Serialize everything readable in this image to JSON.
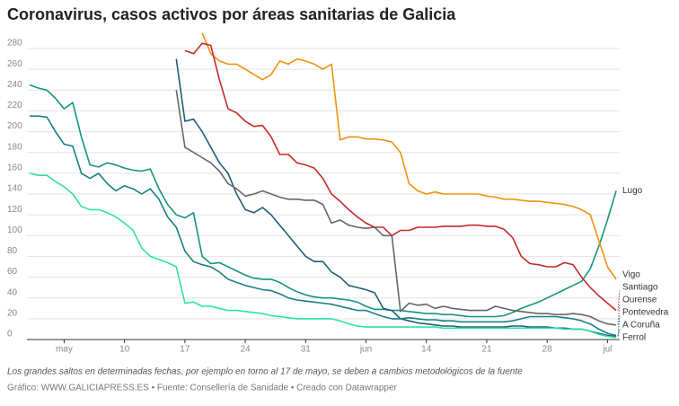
{
  "chart_data": {
    "type": "line",
    "title": "Coronavirus, casos activos por áreas sanitarias de Galicia",
    "note": "Los grandes saltos en determinadas fechas, por ejemplo en torno al 17 de mayo, se deben a cambios metodológicos de la fuente",
    "credit": "Gráfico: WWW.GALICIAPRESS.ES • Fuente: Consellería de Sanidade • Creado con Datawrapper",
    "categories": [
      null,
      null,
      null,
      null,
      "may",
      null,
      null,
      null,
      null,
      null,
      null,
      "10",
      null,
      null,
      null,
      null,
      null,
      null,
      "17",
      null,
      null,
      null,
      null,
      null,
      null,
      "24",
      null,
      null,
      null,
      null,
      null,
      null,
      "31",
      null,
      null,
      null,
      null,
      null,
      null,
      "jun",
      null,
      null,
      null,
      null,
      null,
      null,
      "14",
      null,
      null,
      null,
      null,
      null,
      null,
      "21",
      null,
      null,
      null,
      null,
      null,
      null,
      "28",
      null,
      null,
      null,
      null,
      null,
      null,
      "jul",
      null
    ],
    "ylim": [
      0,
      280
    ],
    "yticks": [
      0,
      20,
      40,
      60,
      80,
      100,
      120,
      140,
      160,
      180,
      200,
      220,
      240,
      260,
      280
    ],
    "grid": true,
    "series": [
      {
        "name": "Lugo",
        "color": "#13957d",
        "values": [
          245,
          242,
          240,
          232,
          222,
          228,
          195,
          168,
          166,
          170,
          168,
          165,
          163,
          162,
          164,
          145,
          130,
          120,
          117,
          122,
          80,
          73,
          74,
          70,
          66,
          62,
          59,
          58,
          58,
          55,
          50,
          46,
          43,
          41,
          40,
          40,
          39,
          38,
          36,
          32,
          29,
          29,
          28,
          28,
          27,
          26,
          25,
          25,
          24,
          24,
          23,
          22,
          22,
          22,
          22,
          23,
          26,
          30,
          33,
          36,
          40,
          44,
          48,
          52,
          56,
          68,
          90,
          115,
          143
        ]
      },
      {
        "name": "Vigo",
        "color": "#f0920e",
        "values": [
          null,
          null,
          null,
          null,
          null,
          null,
          null,
          null,
          null,
          null,
          null,
          null,
          null,
          null,
          null,
          null,
          null,
          null,
          null,
          null,
          295,
          275,
          268,
          265,
          265,
          260,
          255,
          250,
          255,
          268,
          265,
          270,
          268,
          265,
          260,
          265,
          192,
          195,
          195,
          193,
          193,
          192,
          190,
          180,
          150,
          143,
          140,
          142,
          140,
          140,
          140,
          140,
          140,
          138,
          137,
          135,
          135,
          134,
          133,
          133,
          132,
          131,
          130,
          128,
          125,
          120,
          95,
          70,
          58
        ]
      },
      {
        "name": "A Coruña",
        "color": "#1e5d76",
        "values": [
          null,
          null,
          null,
          null,
          null,
          null,
          null,
          null,
          null,
          null,
          null,
          null,
          null,
          null,
          null,
          null,
          null,
          270,
          210,
          212,
          200,
          185,
          170,
          160,
          140,
          125,
          122,
          127,
          120,
          110,
          100,
          90,
          80,
          75,
          75,
          65,
          60,
          52,
          50,
          48,
          45,
          30,
          28,
          20,
          18,
          16,
          15,
          14,
          13,
          13,
          12,
          12,
          12,
          12,
          12,
          12,
          13,
          13,
          12,
          12,
          12,
          11,
          11,
          10,
          10,
          8,
          6,
          4,
          3
        ]
      },
      {
        "name": "Santiago",
        "color": "#c42a2a",
        "values": [
          null,
          null,
          null,
          null,
          null,
          null,
          null,
          null,
          null,
          null,
          null,
          null,
          null,
          null,
          null,
          null,
          null,
          null,
          278,
          275,
          285,
          283,
          250,
          222,
          218,
          210,
          205,
          206,
          195,
          178,
          178,
          170,
          168,
          165,
          155,
          140,
          133,
          125,
          118,
          112,
          108,
          108,
          100,
          105,
          105,
          108,
          108,
          108,
          109,
          109,
          109,
          110,
          110,
          109,
          109,
          106,
          98,
          80,
          73,
          72,
          70,
          70,
          74,
          72,
          60,
          50,
          42,
          35,
          28
        ]
      },
      {
        "name": "Ourense",
        "color": "#666666",
        "values": [
          null,
          null,
          null,
          null,
          null,
          null,
          null,
          null,
          null,
          null,
          null,
          null,
          null,
          null,
          null,
          null,
          null,
          240,
          185,
          180,
          175,
          170,
          162,
          150,
          145,
          138,
          140,
          143,
          140,
          137,
          135,
          135,
          134,
          134,
          130,
          112,
          115,
          110,
          108,
          107,
          108,
          100,
          100,
          27,
          35,
          33,
          34,
          30,
          32,
          30,
          29,
          28,
          28,
          28,
          32,
          30,
          28,
          27,
          26,
          25,
          25,
          24,
          24,
          25,
          24,
          22,
          18,
          15,
          14
        ]
      },
      {
        "name": "Pontevedra",
        "color": "#177f86",
        "values": [
          215,
          215,
          214,
          200,
          188,
          186,
          160,
          155,
          160,
          150,
          143,
          148,
          145,
          140,
          145,
          135,
          118,
          108,
          85,
          75,
          72,
          70,
          65,
          58,
          55,
          52,
          50,
          48,
          47,
          44,
          40,
          38,
          37,
          36,
          35,
          34,
          32,
          30,
          28,
          28,
          25,
          22,
          20,
          20,
          21,
          20,
          19,
          19,
          18,
          18,
          17,
          17,
          17,
          17,
          17,
          17,
          18,
          20,
          22,
          22,
          22,
          22,
          21,
          20,
          18,
          15,
          10,
          6,
          4
        ]
      },
      {
        "name": "Ferrol",
        "color": "#2fe0a8",
        "values": [
          160,
          158,
          158,
          152,
          147,
          140,
          128,
          125,
          125,
          122,
          118,
          112,
          105,
          88,
          80,
          77,
          74,
          70,
          35,
          36,
          32,
          32,
          30,
          28,
          28,
          27,
          26,
          25,
          23,
          22,
          21,
          20,
          20,
          20,
          20,
          20,
          18,
          15,
          13,
          12,
          12,
          12,
          12,
          12,
          12,
          12,
          12,
          12,
          11,
          11,
          11,
          11,
          11,
          11,
          11,
          11,
          11,
          11,
          11,
          11,
          11,
          11,
          10,
          10,
          10,
          8,
          5,
          3,
          2
        ]
      }
    ]
  }
}
